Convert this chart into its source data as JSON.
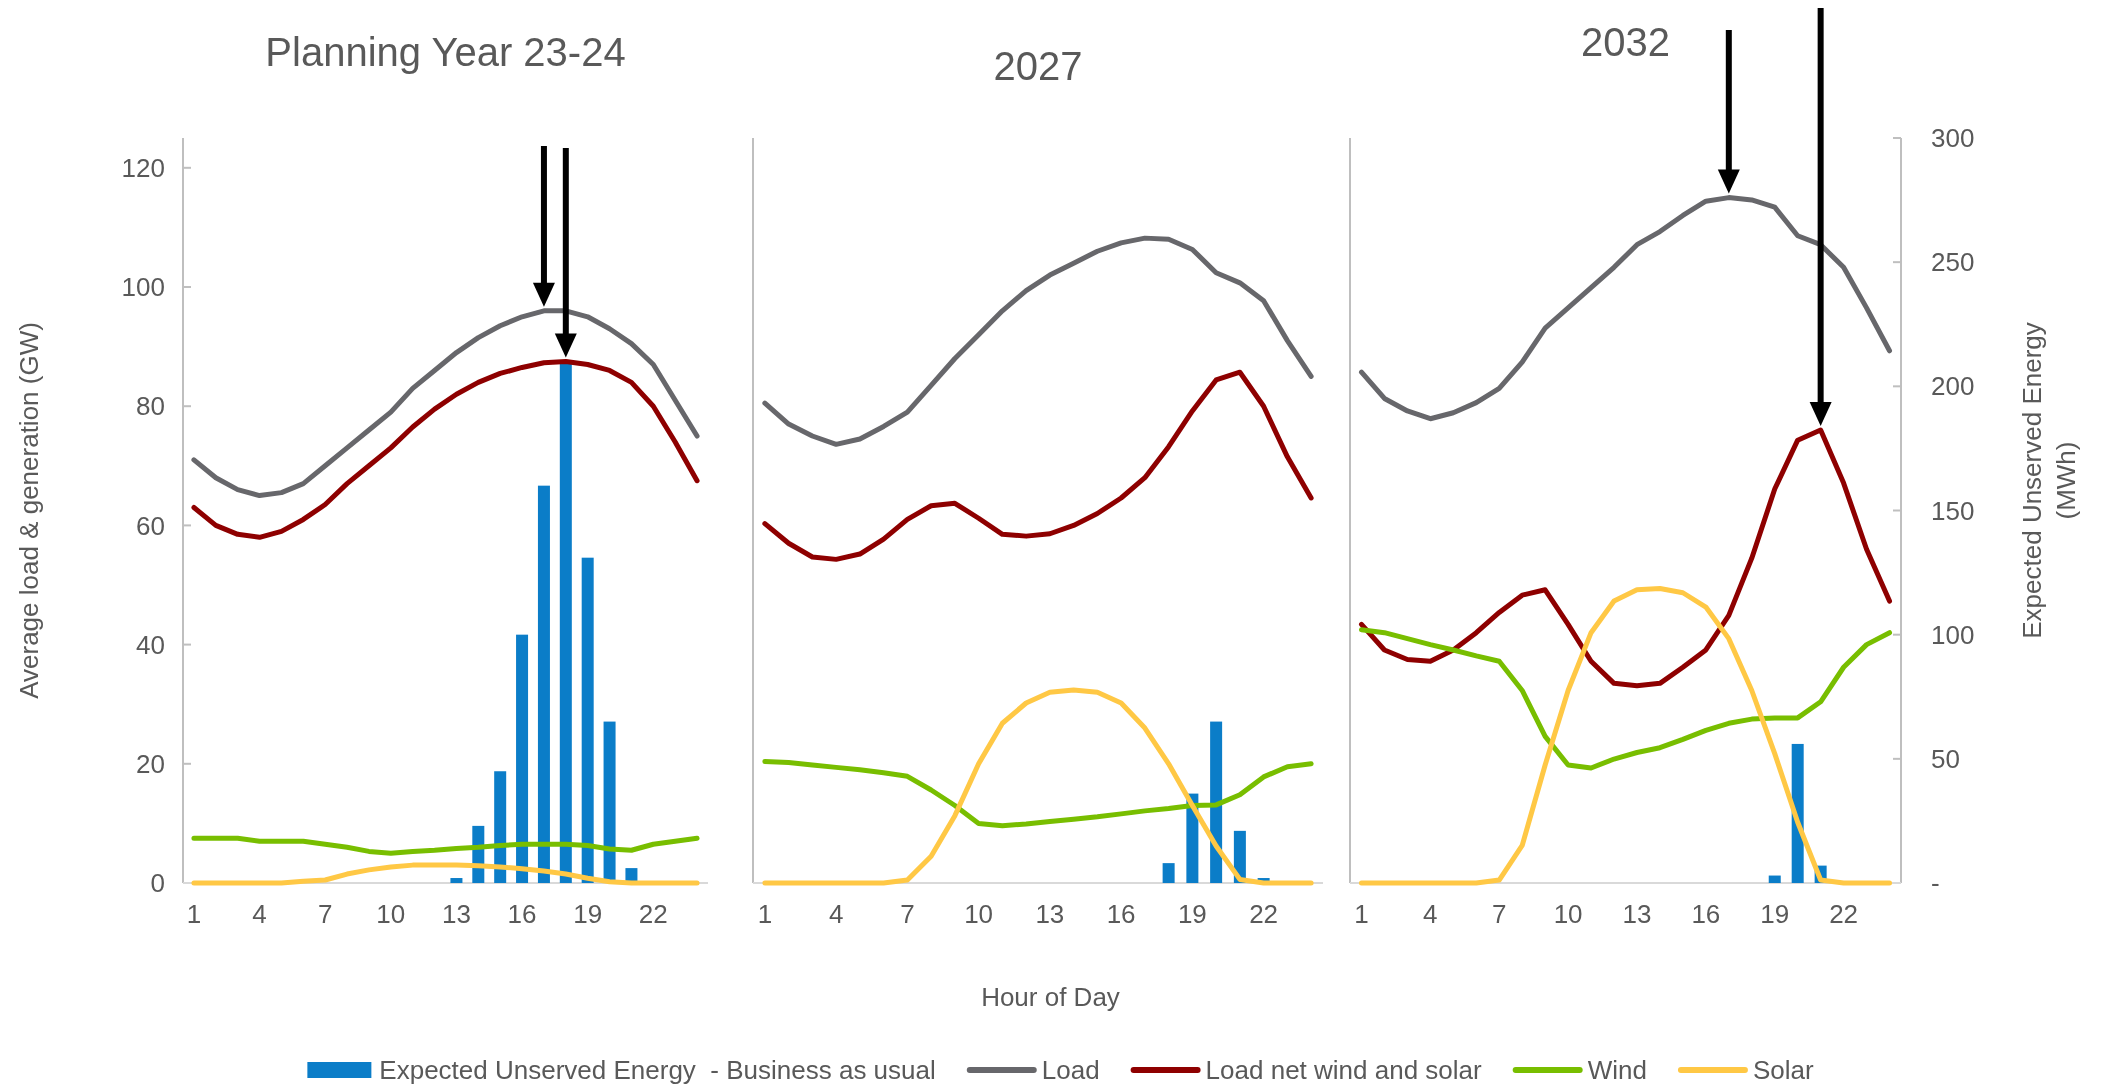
{
  "chart_data": [
    {
      "type": "line",
      "title": "Planning Year 23-24",
      "ylabel": "Average load & generation (GW)",
      "legend": "bottom",
      "tick_labels": [
        "x",
        "y"
      ],
      "x": [
        1,
        2,
        3,
        4,
        5,
        6,
        7,
        8,
        9,
        10,
        11,
        12,
        13,
        14,
        15,
        16,
        17,
        18,
        19,
        20,
        21,
        22,
        23,
        24
      ],
      "xlim": [
        0.5,
        24.5
      ],
      "xticks": [
        1,
        4,
        7,
        10,
        13,
        16,
        19,
        22
      ],
      "ylim": [
        0,
        125
      ],
      "yticks": [
        0,
        20,
        40,
        60,
        80,
        100,
        120
      ],
      "y2lim": [
        0,
        300
      ],
      "series": [
        {
          "name": "Expected Unserved Energy  - Business as usual",
          "type": "bar",
          "axis": "y2",
          "color": "#0b7dc8",
          "values": [
            null,
            null,
            null,
            null,
            null,
            null,
            null,
            null,
            null,
            null,
            null,
            null,
            2,
            23,
            45,
            100,
            160,
            209,
            131,
            65,
            6,
            null,
            null,
            null
          ]
        },
        {
          "name": "Load",
          "color": "#67676b",
          "values": [
            71,
            68,
            66,
            65,
            65.5,
            67,
            70,
            73,
            76,
            79,
            83,
            86,
            89,
            91.5,
            93.5,
            95,
            96,
            96,
            95,
            93,
            90.5,
            87,
            81,
            75
          ]
        },
        {
          "name": "Load net wind and solar",
          "color": "#8e0000",
          "values": [
            63,
            60,
            58.5,
            58,
            59,
            61,
            63.5,
            67,
            70,
            73,
            76.5,
            79.5,
            82,
            84,
            85.5,
            86.5,
            87.3,
            87.5,
            87,
            86,
            84,
            80,
            74,
            67.5
          ]
        },
        {
          "name": "Wind",
          "color": "#78be00",
          "values": [
            7.5,
            7.5,
            7.5,
            7,
            7,
            7,
            6.5,
            6,
            5.3,
            5,
            5.3,
            5.5,
            5.8,
            6,
            6.3,
            6.5,
            6.5,
            6.5,
            6.3,
            5.7,
            5.5,
            6.5,
            7,
            7.5
          ]
        },
        {
          "name": "Solar",
          "color": "#ffc845",
          "values": [
            0,
            0,
            0,
            0,
            0,
            0.3,
            0.5,
            1.5,
            2.2,
            2.7,
            3,
            3,
            3,
            2.9,
            2.7,
            2.4,
            2,
            1.5,
            0.8,
            0.2,
            0,
            0,
            0,
            0
          ]
        }
      ]
    },
    {
      "type": "line",
      "title": "2027",
      "xlabel": "Hour of Day",
      "tick_labels": [
        "x"
      ],
      "x": [
        1,
        2,
        3,
        4,
        5,
        6,
        7,
        8,
        9,
        10,
        11,
        12,
        13,
        14,
        15,
        16,
        17,
        18,
        19,
        20,
        21,
        22,
        23,
        24
      ],
      "xlim": [
        0.5,
        24.5
      ],
      "xticks": [
        1,
        4,
        7,
        10,
        13,
        16,
        19,
        22
      ],
      "ylim": [
        0,
        125
      ],
      "y2lim": [
        0,
        300
      ],
      "series": [
        {
          "type": "bar",
          "axis": "y2",
          "color": "#0b7dc8",
          "values": [
            null,
            null,
            null,
            null,
            null,
            null,
            null,
            null,
            null,
            null,
            null,
            null,
            null,
            null,
            null,
            null,
            null,
            8,
            36,
            65,
            21,
            2,
            null,
            null
          ]
        },
        {
          "color": "#67676b",
          "values": [
            80.5,
            77,
            75,
            73.6,
            74.5,
            76.6,
            79,
            83.5,
            88,
            92,
            96,
            99.4,
            102,
            104,
            106,
            107.4,
            108.2,
            108,
            106.3,
            102.4,
            100.7,
            97.7,
            91,
            85
          ]
        },
        {
          "color": "#8e0000",
          "values": [
            60.3,
            57,
            54.7,
            54.3,
            55.2,
            57.7,
            61,
            63.3,
            63.7,
            61.2,
            58.5,
            58.2,
            58.6,
            60,
            62,
            64.6,
            68,
            73.2,
            79.2,
            84.4,
            85.7,
            80,
            71.5,
            64.6
          ]
        },
        {
          "color": "#78be00",
          "values": [
            20.4,
            20.2,
            19.8,
            19.4,
            19,
            18.5,
            17.9,
            15.6,
            13,
            10,
            9.6,
            9.9,
            10.3,
            10.7,
            11.1,
            11.6,
            12.1,
            12.5,
            13,
            13.1,
            14.8,
            17.8,
            19.5,
            20
          ]
        },
        {
          "color": "#ffc845",
          "values": [
            0,
            0,
            0,
            0,
            0,
            0,
            0.5,
            4.5,
            11.3,
            20,
            26.8,
            30.2,
            32,
            32.4,
            32,
            30.2,
            26,
            20,
            13,
            6.2,
            0.6,
            0,
            0,
            0
          ]
        }
      ]
    },
    {
      "type": "line",
      "title": "2032",
      "y2label": "Expected Unserved Energy (MWh)",
      "tick_labels": [
        "x",
        "y2"
      ],
      "x": [
        1,
        2,
        3,
        4,
        5,
        6,
        7,
        8,
        9,
        10,
        11,
        12,
        13,
        14,
        15,
        16,
        17,
        18,
        19,
        20,
        21,
        22,
        23,
        24
      ],
      "xlim": [
        0.5,
        24.5
      ],
      "xticks": [
        1,
        4,
        7,
        10,
        13,
        16,
        19,
        22
      ],
      "ylim": [
        0,
        125
      ],
      "y2lim": [
        0,
        300
      ],
      "y2ticks": [
        {
          "value": 0,
          "label": "-"
        },
        50,
        100,
        150,
        200,
        250,
        300
      ],
      "series": [
        {
          "type": "bar",
          "axis": "y2",
          "color": "#0b7dc8",
          "values": [
            null,
            null,
            null,
            null,
            null,
            null,
            null,
            null,
            null,
            null,
            null,
            null,
            null,
            null,
            null,
            null,
            null,
            null,
            3,
            56,
            7,
            null,
            null,
            null
          ]
        },
        {
          "color": "#67676b",
          "values": [
            85.7,
            81.3,
            79.2,
            77.9,
            78.9,
            80.6,
            83,
            87.4,
            93.1,
            96.5,
            99.9,
            103.3,
            107.1,
            109.3,
            112,
            114.4,
            115,
            114.6,
            113.4,
            108.6,
            107.1,
            103.3,
            96.5,
            89.3
          ]
        },
        {
          "color": "#8e0000",
          "values": [
            43.4,
            39.1,
            37.5,
            37.2,
            39.1,
            42,
            45.4,
            48.3,
            49.2,
            43.4,
            37.2,
            33.5,
            33.1,
            33.5,
            36.2,
            39.1,
            44.9,
            54.5,
            66.1,
            74.3,
            76,
            67.1,
            56,
            47.3
          ]
        },
        {
          "color": "#78be00",
          "values": [
            42.5,
            42,
            41,
            40,
            39.1,
            38.1,
            37.2,
            32.3,
            24.6,
            19.8,
            19.3,
            20.8,
            21.9,
            22.7,
            24.1,
            25.6,
            26.8,
            27.5,
            27.7,
            27.7,
            30.4,
            36.2,
            40,
            42
          ]
        },
        {
          "color": "#ffc845",
          "values": [
            0,
            0,
            0,
            0,
            0,
            0,
            0.5,
            6.3,
            19.8,
            32.3,
            42,
            47.3,
            49.2,
            49.4,
            48.7,
            46.3,
            41,
            32.3,
            21.7,
            10.2,
            0.5,
            0,
            0,
            0
          ]
        }
      ]
    }
  ]
}
